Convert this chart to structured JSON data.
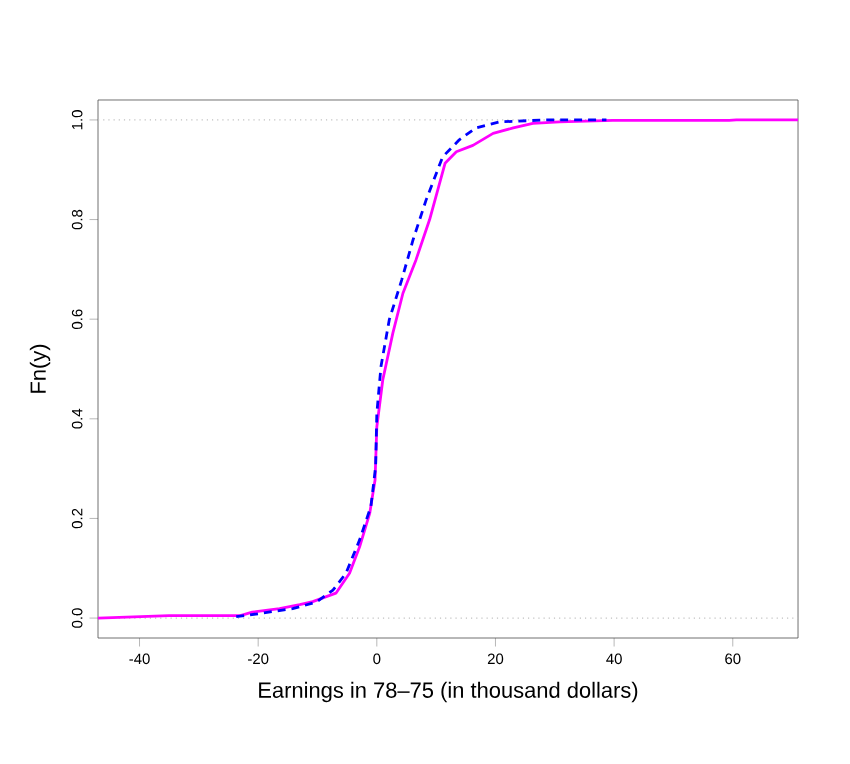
{
  "chart_data": {
    "type": "line",
    "xlabel": "Earnings in 78–75 (in thousand dollars)",
    "ylabel": "Fn(y)",
    "xlim": [
      -47,
      71
    ],
    "ylim": [
      -0.04,
      1.04
    ],
    "xticks": [
      -40,
      -20,
      0,
      20,
      40,
      60
    ],
    "yticks": [
      {
        "value": 0,
        "label": "0.0"
      },
      {
        "value": 0.2,
        "label": "0.2"
      },
      {
        "value": 0.4,
        "label": "0.4"
      },
      {
        "value": 0.6,
        "label": "0.6"
      },
      {
        "value": 0.8,
        "label": "0.8"
      },
      {
        "value": 1,
        "label": "1.0"
      }
    ],
    "grid": false,
    "ref_lines": [
      {
        "axis": "y",
        "value": 0,
        "color": "#c0c0c0",
        "line_style": "dotted"
      },
      {
        "axis": "y",
        "value": 1,
        "color": "#c0c0c0",
        "line_style": "dotted"
      }
    ],
    "series": [
      {
        "color": "#ff00ff",
        "line_style": "solid",
        "x": [
          -47,
          -35,
          -23,
          -21,
          -16.4,
          -13,
          -10.8,
          -6.9,
          -4.6,
          -2.9,
          -1.2,
          -0.3,
          0,
          1,
          2.7,
          4.4,
          6.6,
          8.9,
          11.5,
          13.4,
          16.2,
          19.6,
          23,
          26.3,
          30.8,
          39.8,
          59.4,
          60.6,
          71
        ],
        "values": [
          0,
          0.005,
          0.005,
          0.012,
          0.019,
          0.027,
          0.033,
          0.05,
          0.09,
          0.143,
          0.21,
          0.277,
          0.384,
          0.478,
          0.572,
          0.652,
          0.719,
          0.8,
          0.913,
          0.936,
          0.949,
          0.973,
          0.984,
          0.993,
          0.996,
          0.999,
          0.999,
          1,
          1
        ]
      },
      {
        "color": "#0000ff",
        "line_style": "dashed",
        "x": [
          -23.7,
          -19.8,
          -14.2,
          -10.2,
          -7.4,
          -5.2,
          -2.9,
          -1,
          -0.2,
          0,
          0.7,
          2.1,
          4.2,
          6.1,
          8.3,
          11.1,
          13.9,
          16.7,
          20.7,
          28.5,
          38.7
        ],
        "values": [
          0.003,
          0.009,
          0.019,
          0.032,
          0.056,
          0.09,
          0.157,
          0.224,
          0.304,
          0.411,
          0.505,
          0.599,
          0.679,
          0.759,
          0.839,
          0.926,
          0.96,
          0.984,
          0.996,
          1,
          1
        ]
      }
    ]
  }
}
